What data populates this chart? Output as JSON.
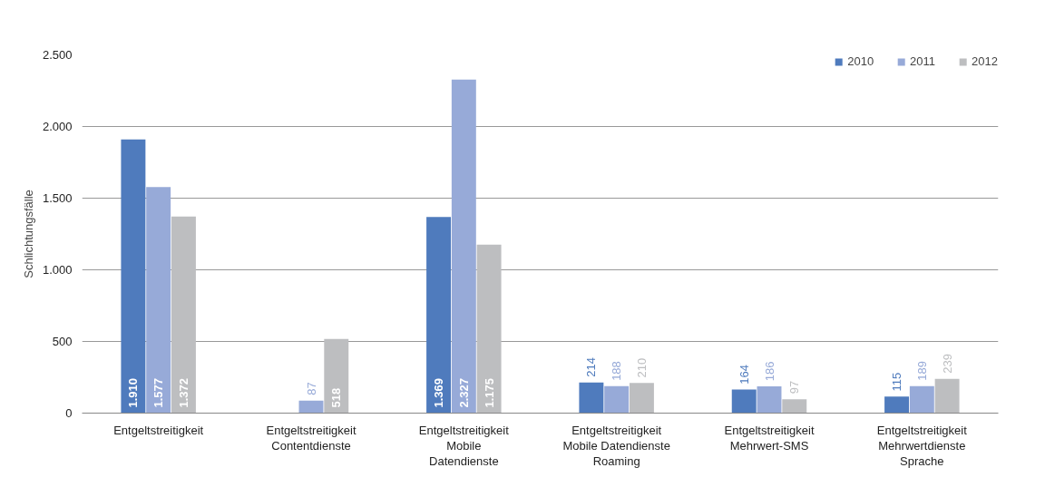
{
  "chart_data": {
    "type": "bar",
    "ylabel": "Schlichtungsfälle",
    "categories": [
      "Entgeltstreitigkeit",
      "Entgeltstreitigkeit\nContentdienste",
      "Entgeltstreitigkeit\nMobile\nDatendienste",
      "Entgeltstreitigkeit\nMobile Datendienste\nRoaming",
      "Entgeltstreitigkeit\nMehrwert-SMS",
      "Entgeltstreitigkeit\nMehrwertdienste\nSprache"
    ],
    "series": [
      {
        "name": "2010",
        "color": "#4f7bbd",
        "values": [
          1910,
          null,
          1369,
          214,
          164,
          115
        ],
        "value_labels": [
          "1.910",
          null,
          "1.369",
          "214",
          "164",
          "115"
        ]
      },
      {
        "name": "2011",
        "color": "#97aad8",
        "values": [
          1577,
          87,
          2327,
          188,
          186,
          189
        ],
        "value_labels": [
          "1.577",
          "87",
          "2.327",
          "188",
          "186",
          "189"
        ]
      },
      {
        "name": "2012",
        "color": "#bdbec0",
        "values": [
          1372,
          518,
          1175,
          210,
          97,
          239
        ],
        "value_labels": [
          "1.372",
          "518",
          "1.175",
          "210",
          "97",
          "239"
        ]
      }
    ],
    "ylim": [
      0,
      2500
    ],
    "yticks": [
      0,
      {
        "value": 500,
        "label": "500"
      },
      {
        "value": 1000,
        "label": "1.000"
      },
      {
        "value": 1500,
        "label": "1.500"
      },
      {
        "value": 2000,
        "label": "2.000"
      },
      {
        "value": 2500,
        "label": "2.500"
      }
    ],
    "grid": "y",
    "legend": "top right"
  }
}
